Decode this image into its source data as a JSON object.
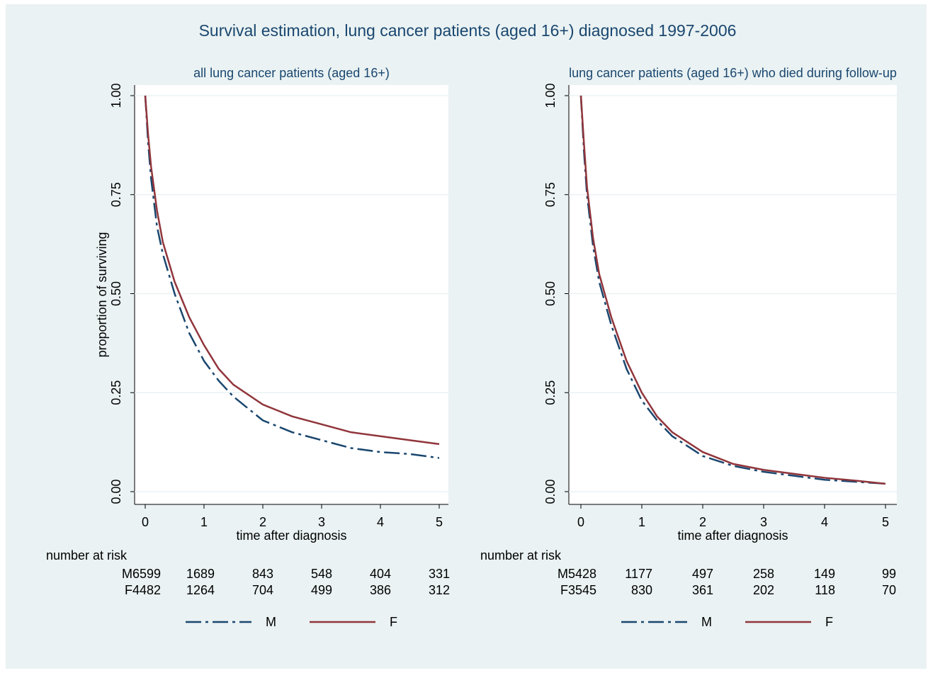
{
  "title": "Survival estimation, lung cancer patients (aged 16+) diagnosed 1997-2006",
  "chart_data": [
    {
      "type": "line",
      "subtitle": "all lung cancer patients (aged 16+)",
      "x_label": "time after diagnosis",
      "y_label": "proportion of surviving",
      "x": [
        0,
        0.05,
        0.1,
        0.2,
        0.3,
        0.5,
        0.75,
        1,
        1.25,
        1.5,
        2,
        2.5,
        3,
        3.5,
        4,
        4.5,
        5
      ],
      "series": [
        {
          "name": "M",
          "color": "#1a476f",
          "dash": "dash-dot",
          "values": [
            1.0,
            0.88,
            0.79,
            0.67,
            0.6,
            0.5,
            0.4,
            0.33,
            0.28,
            0.24,
            0.18,
            0.15,
            0.13,
            0.11,
            0.1,
            0.095,
            0.085
          ]
        },
        {
          "name": "F",
          "color": "#90353b",
          "dash": "solid",
          "values": [
            1.0,
            0.9,
            0.82,
            0.71,
            0.63,
            0.53,
            0.44,
            0.37,
            0.31,
            0.27,
            0.22,
            0.19,
            0.17,
            0.15,
            0.14,
            0.13,
            0.12
          ]
        }
      ],
      "xlim": [
        0,
        5
      ],
      "xticks": [
        0,
        1,
        2,
        3,
        4,
        5
      ],
      "ylim": [
        0,
        1
      ],
      "yticks": [
        {
          "value": 0,
          "label": "0.00"
        },
        {
          "value": 0.25,
          "label": "0.25"
        },
        {
          "value": 0.5,
          "label": "0.50"
        },
        {
          "value": 0.75,
          "label": "0.75"
        },
        {
          "value": 1,
          "label": "1.00"
        }
      ],
      "grid": true,
      "risk_table": {
        "title": "number at risk",
        "rows": [
          {
            "name": "M",
            "values": [
              6599,
              1689,
              843,
              548,
              404,
              331
            ]
          },
          {
            "name": "F",
            "values": [
              4482,
              1264,
              704,
              499,
              386,
              312
            ]
          }
        ]
      }
    },
    {
      "type": "line",
      "subtitle": "lung cancer patients (aged 16+) who died during follow-up",
      "x_label": "time after diagnosis",
      "x": [
        0,
        0.05,
        0.1,
        0.2,
        0.3,
        0.5,
        0.75,
        1,
        1.25,
        1.5,
        2,
        2.5,
        3,
        3.5,
        4,
        4.5,
        5
      ],
      "series": [
        {
          "name": "M",
          "color": "#1a476f",
          "dash": "dash-dot",
          "values": [
            1.0,
            0.86,
            0.75,
            0.62,
            0.53,
            0.42,
            0.31,
            0.23,
            0.18,
            0.14,
            0.09,
            0.065,
            0.05,
            0.04,
            0.03,
            0.025,
            0.02
          ]
        },
        {
          "name": "F",
          "color": "#90353b",
          "dash": "solid",
          "values": [
            1.0,
            0.88,
            0.77,
            0.64,
            0.55,
            0.44,
            0.33,
            0.25,
            0.19,
            0.15,
            0.1,
            0.07,
            0.055,
            0.045,
            0.035,
            0.028,
            0.02
          ]
        }
      ],
      "xlim": [
        0,
        5
      ],
      "xticks": [
        0,
        1,
        2,
        3,
        4,
        5
      ],
      "ylim": [
        0,
        1
      ],
      "yticks": [
        {
          "value": 0,
          "label": "0.00"
        },
        {
          "value": 0.25,
          "label": "0.25"
        },
        {
          "value": 0.5,
          "label": "0.50"
        },
        {
          "value": 0.75,
          "label": "0.75"
        },
        {
          "value": 1,
          "label": "1.00"
        }
      ],
      "grid": true,
      "risk_table": {
        "title": "number at risk",
        "rows": [
          {
            "name": "M",
            "values": [
              5428,
              1177,
              497,
              258,
              149,
              99
            ]
          },
          {
            "name": "F",
            "values": [
              3545,
              830,
              361,
              202,
              118,
              70
            ]
          }
        ]
      }
    }
  ]
}
